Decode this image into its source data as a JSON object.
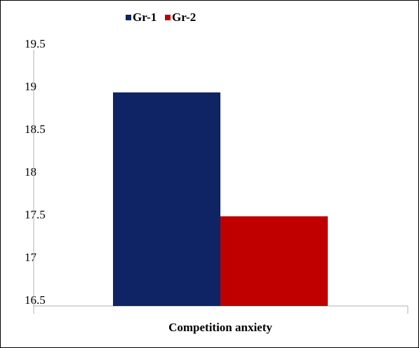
{
  "chart_data": {
    "type": "bar",
    "categories": [
      "Competition anxiety"
    ],
    "series": [
      {
        "name": "Gr-1",
        "values": [
          19.0
        ],
        "color": "#0e2465"
      },
      {
        "name": "Gr-2",
        "values": [
          17.55
        ],
        "color": "#c00000"
      }
    ],
    "title": "",
    "xlabel": "",
    "ylabel": "",
    "ylim": [
      16.5,
      19.5
    ],
    "yticks": [
      "16.5",
      "17",
      "17.5",
      "18",
      "18.5",
      "19",
      "19.5"
    ],
    "grid": false,
    "legend_position": "top-left"
  }
}
